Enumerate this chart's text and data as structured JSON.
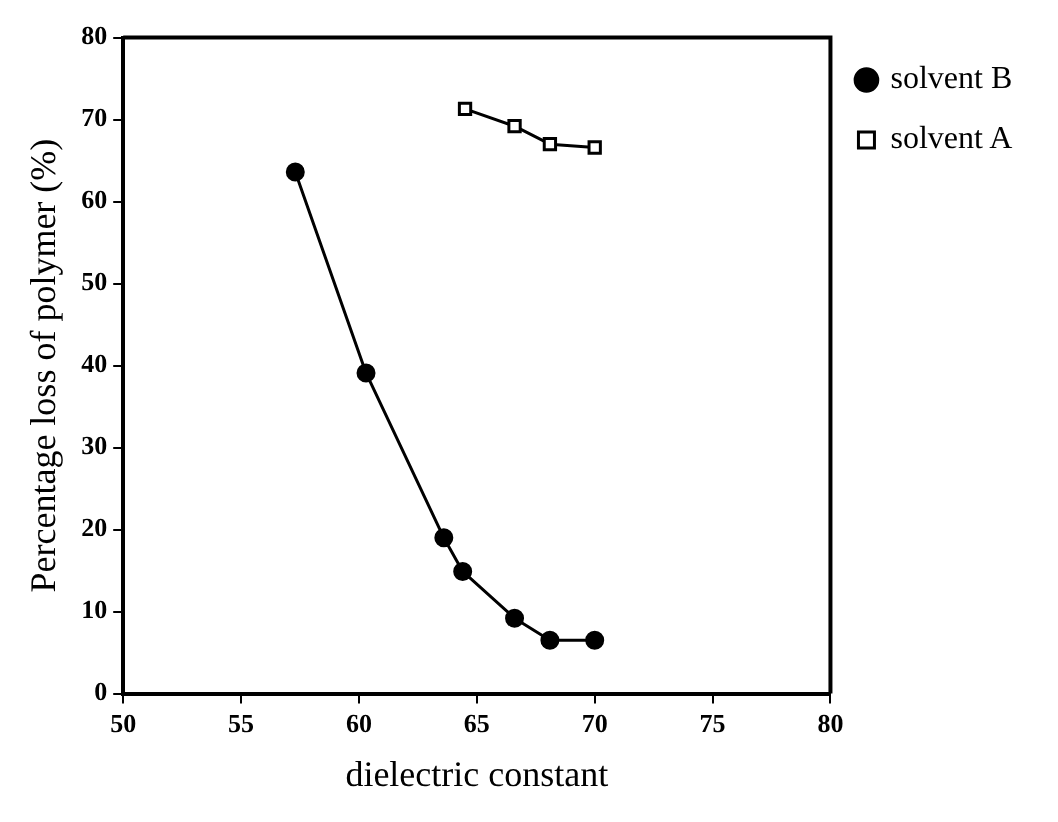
{
  "chart_data": {
    "type": "line",
    "xlabel": "dielectric constant",
    "ylabel": "Percentage loss of polymer (%)",
    "xlim": [
      50,
      80
    ],
    "xticks": [
      50,
      55,
      60,
      65,
      70,
      75,
      80
    ],
    "ylim": [
      0,
      80
    ],
    "yticks": [
      0,
      10,
      20,
      30,
      40,
      50,
      60,
      70,
      80
    ],
    "grid": false,
    "legend": "right",
    "line_style": "solid",
    "series": [
      {
        "name": "solvent B",
        "color": "#000000",
        "marker": "circle",
        "x": [
          57.3,
          60.3,
          63.6,
          64.4,
          66.6,
          68.1,
          70.0
        ],
        "values": [
          63.6,
          39.1,
          19.0,
          14.9,
          9.2,
          6.5,
          6.5
        ]
      },
      {
        "name": "solvent A",
        "color": "#000000",
        "marker": "square",
        "x": [
          64.5,
          66.6,
          68.1,
          70.0
        ],
        "values": [
          71.3,
          69.2,
          67.0,
          66.6
        ]
      }
    ]
  }
}
